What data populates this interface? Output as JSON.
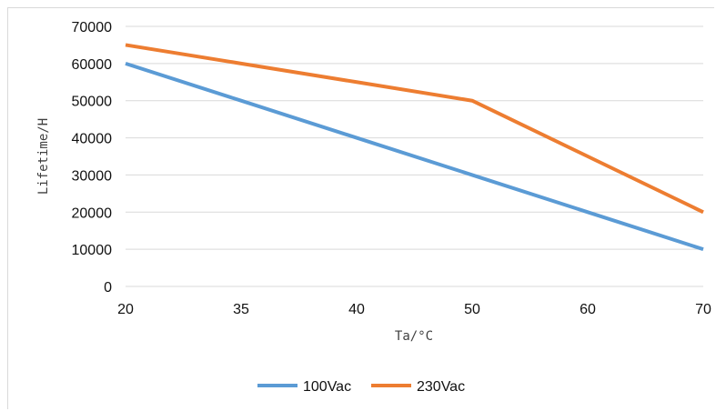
{
  "chart_data": {
    "type": "line",
    "title": "",
    "xlabel": "Ta/°C",
    "ylabel": "Lifetime/H",
    "categories": [
      "20",
      "35",
      "40",
      "50",
      "60",
      "70"
    ],
    "series": [
      {
        "name": "100Vac",
        "values": [
          60000,
          50000,
          40000,
          30000,
          20000,
          10000
        ],
        "color": "#5b9bd5"
      },
      {
        "name": "230Vac",
        "values": [
          65000,
          60000,
          55000,
          50000,
          35000,
          20000
        ],
        "color": "#ed7d31"
      }
    ],
    "ylim": [
      0,
      70000
    ],
    "yticks": [
      "0",
      "10000",
      "20000",
      "30000",
      "40000",
      "50000",
      "60000",
      "70000"
    ],
    "grid": true,
    "legend": "bottom-center"
  }
}
